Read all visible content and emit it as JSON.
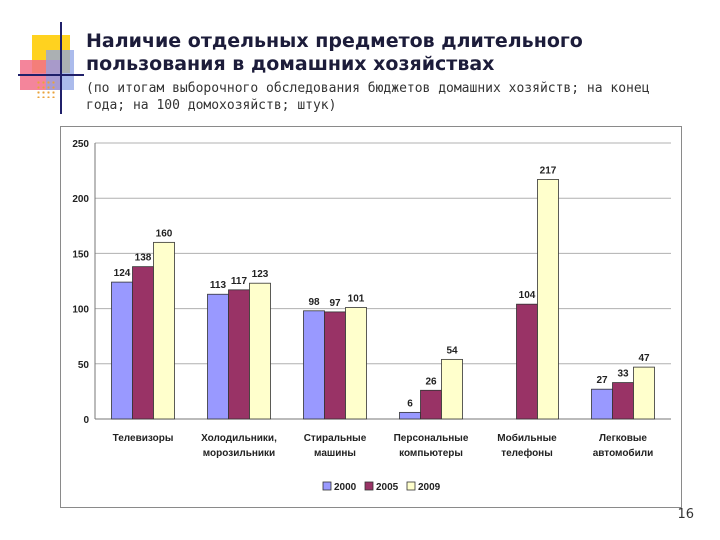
{
  "slide": {
    "title": "Наличие отдельных предметов длительного пользования  в домашних хозяйствах",
    "subtitle": "(по итогам выборочного обследования бюджетов домашних хозяйств; на конец года; на 100 домохозяйств; штук)",
    "page_number": "16"
  },
  "colors": {
    "accent_yellow": "#ffd21f",
    "accent_red": "#f2708a",
    "accent_blue": "#8fa4e6"
  },
  "chart_data": {
    "type": "bar",
    "categories": [
      [
        "Телевизоры"
      ],
      [
        "Холодильники,",
        "морозильники"
      ],
      [
        "Стиральные",
        "машины"
      ],
      [
        "Персональные",
        "компьютеры"
      ],
      [
        "Мобильные",
        "телефоны"
      ],
      [
        "Легковые",
        "автомобили"
      ]
    ],
    "series": [
      {
        "name": "2000",
        "color": "#9999ff",
        "values": [
          124,
          113,
          98,
          6,
          null,
          27
        ]
      },
      {
        "name": "2005",
        "color": "#993366",
        "values": [
          138,
          117,
          97,
          26,
          104,
          33
        ]
      },
      {
        "name": "2009",
        "color": "#ffffcc",
        "values": [
          160,
          123,
          101,
          54,
          217,
          47
        ]
      }
    ],
    "ylim": [
      0,
      250
    ],
    "yticks": [
      0,
      50,
      100,
      150,
      200,
      250
    ],
    "grid": true,
    "legend": "bottom",
    "title": "",
    "xlabel": "",
    "ylabel": ""
  }
}
